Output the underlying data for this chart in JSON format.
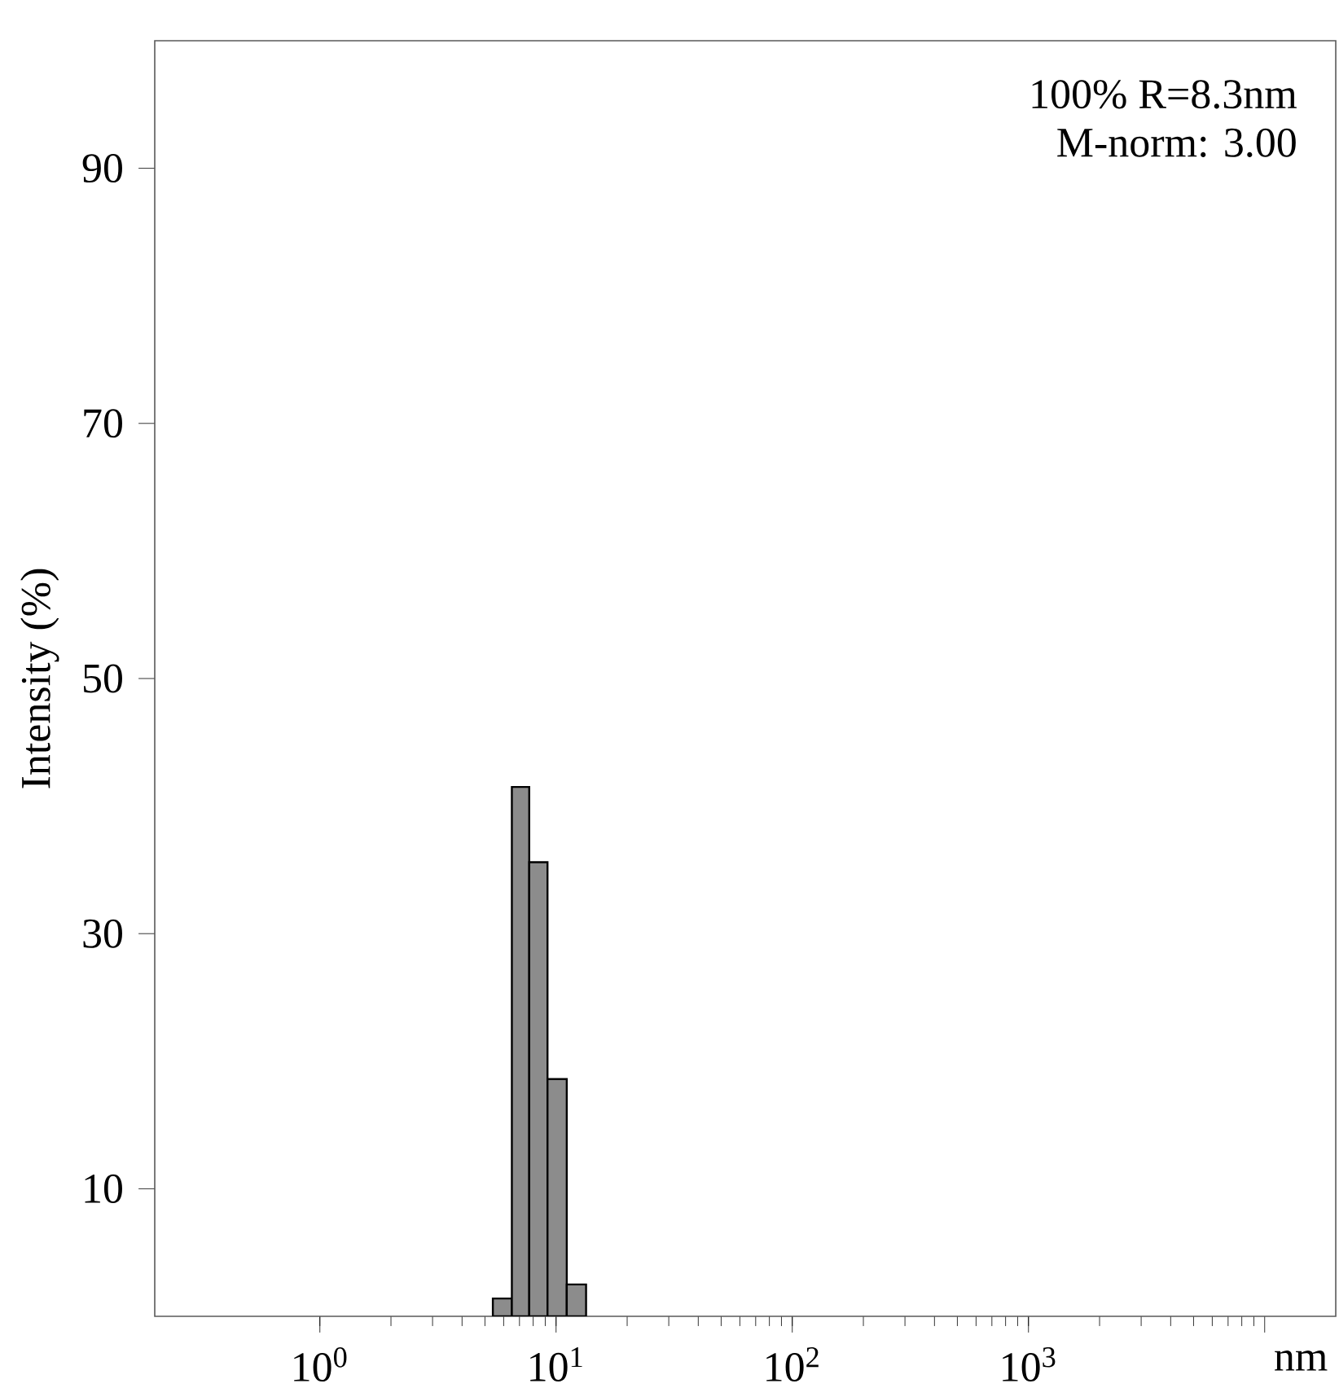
{
  "chart_data": {
    "type": "histogram",
    "ylabel": "Intensity (%)",
    "xlabel": "nm",
    "annotations": [
      "100% R=8.3nm",
      "M-norm: 3.00"
    ],
    "bins": [
      5.4,
      6.5,
      7.7,
      9.2,
      11.1,
      13.4
    ],
    "values": [
      1.4,
      41.5,
      35.6,
      18.6,
      2.5
    ],
    "color": "#8c8c8c",
    "log": "x",
    "xlim": [
      0.2,
      20000
    ],
    "xticks": [
      {
        "value": 1,
        "label": "10$^{0}$"
      },
      {
        "value": 10,
        "label": "10$^{1}$"
      },
      {
        "value": 100,
        "label": "10$^{2}$"
      },
      {
        "value": 1000,
        "label": "10$^{3}$"
      },
      {
        "value": 10000,
        "label": null
      }
    ],
    "ylim": [
      0,
      100
    ],
    "yticks": [
      10,
      30,
      50,
      70,
      90
    ],
    "grid": false
  }
}
